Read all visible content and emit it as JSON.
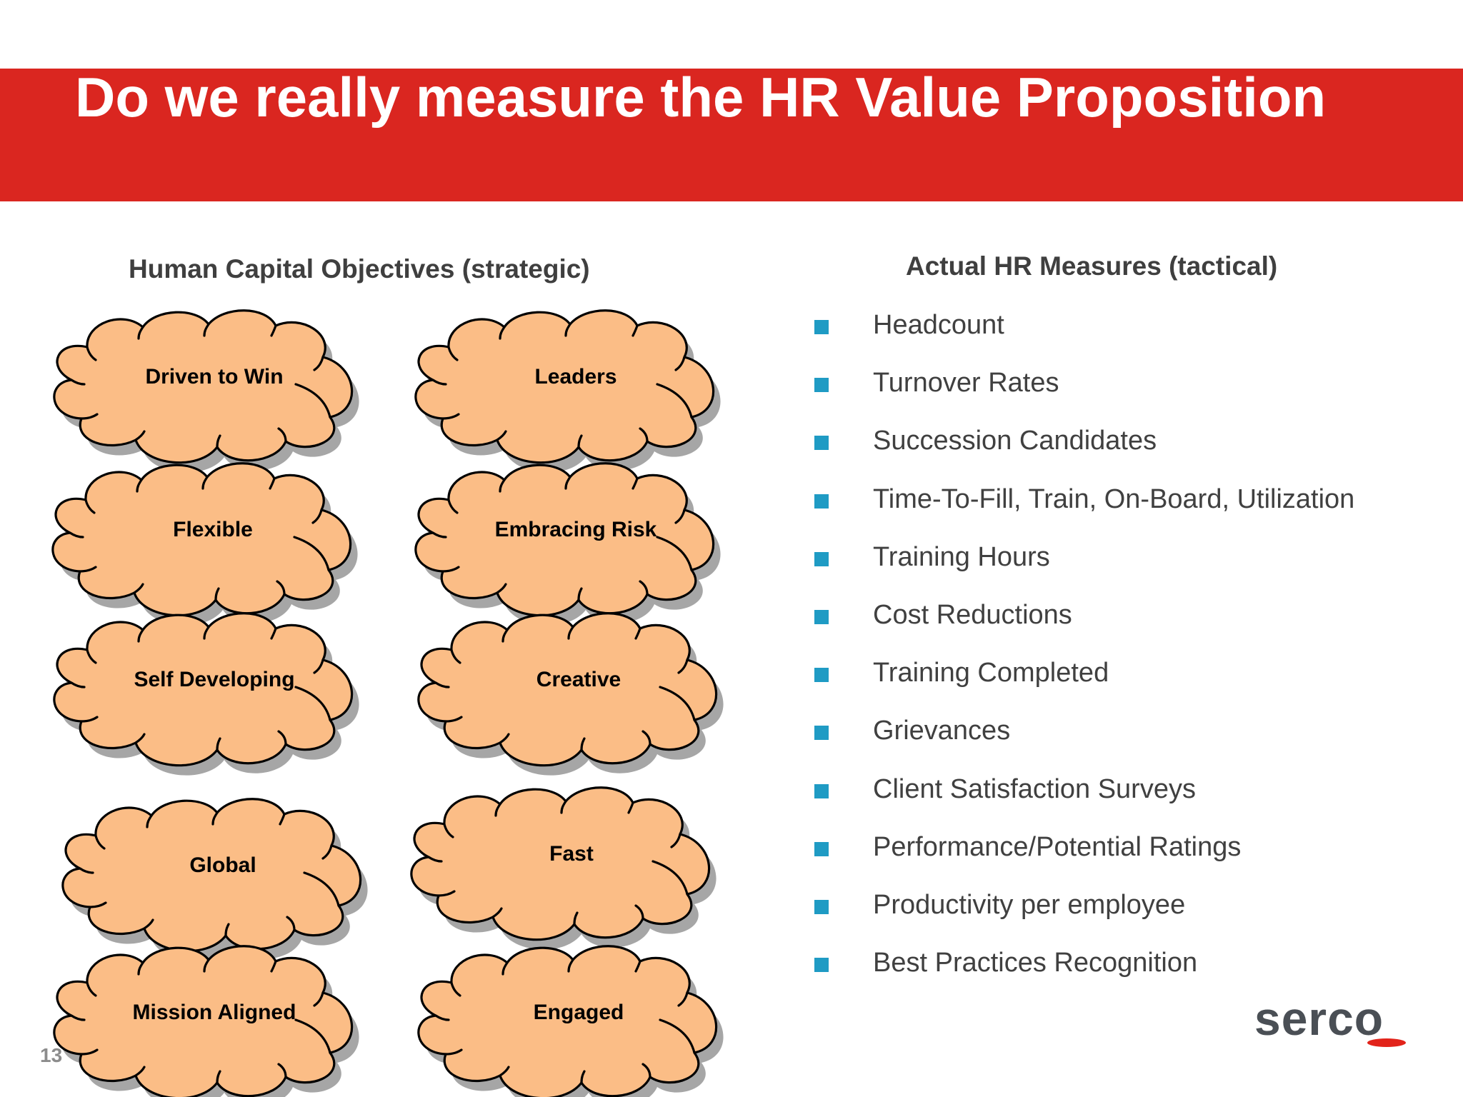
{
  "title": "Do we really measure the HR Value Proposition",
  "left_column": {
    "heading": "Human Capital Objectives (strategic)",
    "clouds": [
      {
        "label": "Driven to Win"
      },
      {
        "label": "Leaders"
      },
      {
        "label": "Flexible"
      },
      {
        "label": "Embracing Risk"
      },
      {
        "label": "Self Developing"
      },
      {
        "label": "Creative"
      },
      {
        "label": "Global"
      },
      {
        "label": "Fast"
      },
      {
        "label": "Mission Aligned"
      },
      {
        "label": "Engaged"
      }
    ]
  },
  "right_column": {
    "heading": "Actual HR Measures (tactical)",
    "items": [
      "Headcount",
      "Turnover Rates",
      "Succession Candidates",
      "Time-To-Fill, Train, On-Board, Utilization",
      "Training Hours",
      "Cost Reductions",
      "Training Completed",
      "Grievances",
      "Client Satisfaction Surveys",
      "Performance/Potential Ratings",
      "Productivity per employee",
      "Best Practices Recognition"
    ]
  },
  "footer": {
    "page_number": "13",
    "logo_text": "serco"
  },
  "colors": {
    "title_bar": "#da2620",
    "cloud_fill": "#fbbd86",
    "bullet": "#1f9bc4",
    "logo_accent": "#e2231a"
  }
}
